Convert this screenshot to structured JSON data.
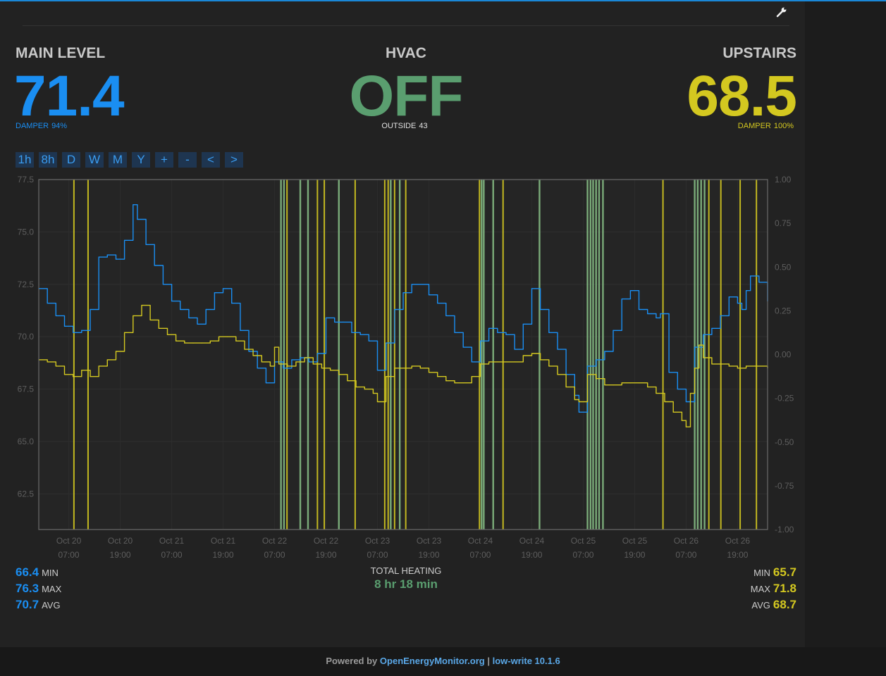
{
  "main_level": {
    "title": "MAIN LEVEL",
    "value": "71.4",
    "damper_label": "DAMPER",
    "damper_value": "94%"
  },
  "hvac": {
    "title": "HVAC",
    "value": "OFF",
    "outside_label": "OUTSIDE",
    "outside_value": "43"
  },
  "upstairs": {
    "title": "UPSTAIRS",
    "value": "68.5",
    "damper_label": "DAMPER",
    "damper_value": "100%"
  },
  "controls": {
    "buttons": [
      "1h",
      "8h",
      "D",
      "W",
      "M",
      "Y",
      "+",
      "-",
      "<",
      ">"
    ]
  },
  "stats": {
    "main": [
      {
        "value": "66.4",
        "label": "MIN"
      },
      {
        "value": "76.3",
        "label": "MAX"
      },
      {
        "value": "70.7",
        "label": "AVG"
      }
    ],
    "upstairs": [
      {
        "value": "65.7",
        "label": "MIN"
      },
      {
        "value": "71.8",
        "label": "MAX"
      },
      {
        "value": "68.7",
        "label": "AVG"
      }
    ],
    "total_heating_label": "TOTAL HEATING",
    "total_heating_value": "8 hr 18 min"
  },
  "footer": {
    "prefix": "Powered by",
    "link1": "OpenEnergyMonitor.org",
    "sep": "|",
    "link2": "low-write 10.1.6"
  },
  "colors": {
    "main": "#1a8ef2",
    "upstairs": "#d4c820",
    "hvac_off": "#5a9e6f",
    "heating": "#7fb37e",
    "background": "#222222"
  },
  "icons": {
    "settings": "wrench-icon"
  },
  "chart_data": {
    "type": "line",
    "xlim": [
      0,
      170
    ],
    "x_unit": "hours since Oct 20 00:00",
    "x_ticks": [
      {
        "x": 7,
        "line1": "Oct 20",
        "line2": "07:00"
      },
      {
        "x": 19,
        "line1": "Oct 20",
        "line2": "19:00"
      },
      {
        "x": 31,
        "line1": "Oct 21",
        "line2": "07:00"
      },
      {
        "x": 43,
        "line1": "Oct 21",
        "line2": "19:00"
      },
      {
        "x": 55,
        "line1": "Oct 22",
        "line2": "07:00"
      },
      {
        "x": 67,
        "line1": "Oct 22",
        "line2": "19:00"
      },
      {
        "x": 79,
        "line1": "Oct 23",
        "line2": "07:00"
      },
      {
        "x": 91,
        "line1": "Oct 23",
        "line2": "19:00"
      },
      {
        "x": 103,
        "line1": "Oct 24",
        "line2": "07:00"
      },
      {
        "x": 115,
        "line1": "Oct 24",
        "line2": "19:00"
      },
      {
        "x": 127,
        "line1": "Oct 25",
        "line2": "07:00"
      },
      {
        "x": 139,
        "line1": "Oct 25",
        "line2": "19:00"
      },
      {
        "x": 151,
        "line1": "Oct 26",
        "line2": "07:00"
      },
      {
        "x": 163,
        "line1": "Oct 26",
        "line2": "19:00"
      }
    ],
    "y_left": {
      "min": 60.8,
      "max": 77.5,
      "ticks": [
        "62.5",
        "65.0",
        "67.5",
        "70.0",
        "72.5",
        "75.0",
        "77.5"
      ]
    },
    "y_right": {
      "min": -1.0,
      "max": 1.0,
      "ticks": [
        "-1.00",
        "-0.75",
        "-0.50",
        "-0.25",
        "0.00",
        "0.25",
        "0.50",
        "0.75",
        "1.00"
      ]
    },
    "grid": true,
    "series": [
      {
        "color": "#1a8ef2",
        "points": [
          [
            0,
            72.3
          ],
          [
            2,
            71.6
          ],
          [
            4,
            71.0
          ],
          [
            6,
            70.5
          ],
          [
            8,
            70.2
          ],
          [
            10,
            70.3
          ],
          [
            12,
            71.3
          ],
          [
            14,
            73.8
          ],
          [
            16,
            73.9
          ],
          [
            18,
            73.7
          ],
          [
            20,
            74.6
          ],
          [
            22,
            76.3
          ],
          [
            23,
            75.6
          ],
          [
            25,
            74.4
          ],
          [
            27,
            73.4
          ],
          [
            29,
            72.5
          ],
          [
            31,
            71.7
          ],
          [
            33,
            71.3
          ],
          [
            35,
            70.9
          ],
          [
            37,
            70.6
          ],
          [
            39,
            71.3
          ],
          [
            41,
            72.1
          ],
          [
            43,
            72.3
          ],
          [
            45,
            71.6
          ],
          [
            47,
            70.3
          ],
          [
            49,
            69.3
          ],
          [
            51,
            68.5
          ],
          [
            53,
            67.8
          ],
          [
            55,
            68.8
          ],
          [
            57,
            68.5
          ],
          [
            59,
            68.9
          ],
          [
            61,
            69.0
          ],
          [
            63,
            68.8
          ],
          [
            65,
            69.2
          ],
          [
            67,
            70.9
          ],
          [
            69,
            70.7
          ],
          [
            71,
            70.7
          ],
          [
            73,
            70.2
          ],
          [
            75,
            70.1
          ],
          [
            77,
            69.8
          ],
          [
            79,
            68.4
          ],
          [
            81,
            69.7
          ],
          [
            83,
            71.3
          ],
          [
            85,
            72.1
          ],
          [
            87,
            72.5
          ],
          [
            89,
            72.5
          ],
          [
            91,
            72.0
          ],
          [
            93,
            71.6
          ],
          [
            95,
            71.0
          ],
          [
            97,
            70.2
          ],
          [
            99,
            69.5
          ],
          [
            101,
            68.8
          ],
          [
            103,
            69.8
          ],
          [
            105,
            70.4
          ],
          [
            107,
            70.2
          ],
          [
            109,
            70.1
          ],
          [
            111,
            69.4
          ],
          [
            113,
            70.6
          ],
          [
            115,
            72.3
          ],
          [
            117,
            71.3
          ],
          [
            119,
            70.2
          ],
          [
            121,
            69.4
          ],
          [
            123,
            68.2
          ],
          [
            125,
            67.2
          ],
          [
            126,
            66.4
          ],
          [
            128,
            68.6
          ],
          [
            130,
            68.9
          ],
          [
            132,
            69.3
          ],
          [
            134,
            70.3
          ],
          [
            136,
            71.8
          ],
          [
            138,
            72.2
          ],
          [
            140,
            71.3
          ],
          [
            142,
            71.1
          ],
          [
            144,
            70.9
          ],
          [
            145,
            71.1
          ],
          [
            147,
            68.3
          ],
          [
            149,
            67.5
          ],
          [
            151,
            66.9
          ],
          [
            153,
            69.5
          ],
          [
            155,
            70.1
          ],
          [
            157,
            70.4
          ],
          [
            159,
            71.0
          ],
          [
            161,
            71.9
          ],
          [
            163,
            71.6
          ],
          [
            164,
            71.3
          ],
          [
            165,
            72.2
          ],
          [
            166,
            72.9
          ],
          [
            168,
            72.6
          ],
          [
            170,
            71.7
          ]
        ]
      },
      {
        "color": "#d4c820",
        "points": [
          [
            0,
            68.9
          ],
          [
            2,
            68.8
          ],
          [
            4,
            68.6
          ],
          [
            6,
            68.2
          ],
          [
            8,
            68.1
          ],
          [
            10,
            68.4
          ],
          [
            12,
            68.1
          ],
          [
            14,
            68.6
          ],
          [
            16,
            68.9
          ],
          [
            18,
            69.3
          ],
          [
            20,
            70.2
          ],
          [
            22,
            71.0
          ],
          [
            24,
            71.5
          ],
          [
            26,
            70.8
          ],
          [
            28,
            70.4
          ],
          [
            30,
            70.1
          ],
          [
            32,
            69.8
          ],
          [
            34,
            69.7
          ],
          [
            36,
            69.7
          ],
          [
            38,
            69.7
          ],
          [
            40,
            69.8
          ],
          [
            42,
            70.0
          ],
          [
            44,
            70.0
          ],
          [
            46,
            69.8
          ],
          [
            48,
            69.4
          ],
          [
            50,
            69.1
          ],
          [
            52,
            68.8
          ],
          [
            54,
            68.6
          ],
          [
            55,
            69.5
          ],
          [
            56,
            68.7
          ],
          [
            58,
            68.6
          ],
          [
            60,
            68.8
          ],
          [
            62,
            69.0
          ],
          [
            64,
            68.7
          ],
          [
            66,
            68.5
          ],
          [
            68,
            68.4
          ],
          [
            70,
            68.2
          ],
          [
            72,
            67.9
          ],
          [
            74,
            67.6
          ],
          [
            76,
            67.5
          ],
          [
            78,
            67.3
          ],
          [
            79,
            66.9
          ],
          [
            81,
            68.1
          ],
          [
            83,
            68.5
          ],
          [
            85,
            68.5
          ],
          [
            87,
            68.6
          ],
          [
            89,
            68.5
          ],
          [
            91,
            68.3
          ],
          [
            93,
            68.1
          ],
          [
            95,
            67.9
          ],
          [
            97,
            67.8
          ],
          [
            99,
            67.8
          ],
          [
            101,
            68.1
          ],
          [
            103,
            68.7
          ],
          [
            105,
            68.8
          ],
          [
            107,
            68.8
          ],
          [
            109,
            68.8
          ],
          [
            111,
            68.8
          ],
          [
            113,
            69.1
          ],
          [
            115,
            69.2
          ],
          [
            117,
            68.9
          ],
          [
            119,
            68.6
          ],
          [
            121,
            68.2
          ],
          [
            123,
            67.6
          ],
          [
            125,
            67.0
          ],
          [
            126,
            66.9
          ],
          [
            128,
            68.2
          ],
          [
            130,
            68.0
          ],
          [
            132,
            67.7
          ],
          [
            134,
            67.7
          ],
          [
            136,
            67.8
          ],
          [
            138,
            67.8
          ],
          [
            140,
            67.8
          ],
          [
            142,
            67.6
          ],
          [
            144,
            67.3
          ],
          [
            146,
            66.9
          ],
          [
            148,
            66.4
          ],
          [
            150,
            66.0
          ],
          [
            151,
            65.7
          ],
          [
            152,
            67.3
          ],
          [
            153,
            68.5
          ],
          [
            154,
            69.6
          ],
          [
            155,
            69.0
          ],
          [
            157,
            68.7
          ],
          [
            159,
            68.7
          ],
          [
            161,
            68.6
          ],
          [
            163,
            68.5
          ],
          [
            165,
            68.6
          ],
          [
            167,
            68.6
          ],
          [
            170,
            68.5
          ]
        ]
      }
    ],
    "event_lines": {
      "green": [
        56.5,
        57.2,
        61.0,
        62.8,
        70.0,
        82.1,
        84.2,
        103.3,
        103.8,
        106.0,
        116.8,
        128.0,
        128.7,
        129.3,
        130.0,
        130.7,
        131.6,
        153.0,
        153.7,
        154.5,
        155.3
      ],
      "yellow": [
        8.2,
        11.5,
        57.9,
        65.0,
        66.6,
        73.8,
        80.7,
        81.5,
        83.0,
        85.6,
        102.8,
        108.3,
        145.6,
        156.3,
        159.1,
        163.6,
        167.4
      ]
    }
  }
}
